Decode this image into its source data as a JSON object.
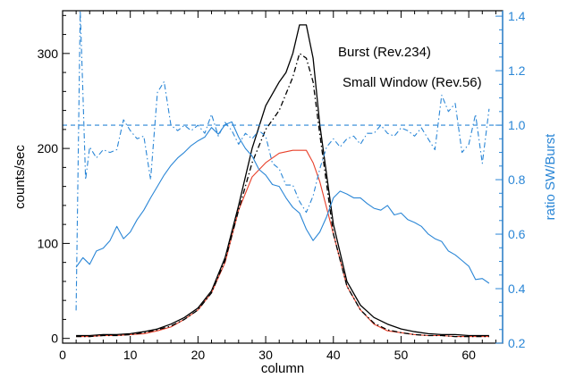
{
  "chart_data": {
    "type": "line",
    "xlabel": "column",
    "ylabel": "counts/sec",
    "y2label": "ratio SW/Burst",
    "xlim": [
      0,
      65
    ],
    "ylim": [
      -5,
      345
    ],
    "y2lim": [
      0.2,
      1.42
    ],
    "xticks": [
      "0",
      "10",
      "20",
      "30",
      "40",
      "50",
      "60"
    ],
    "yticks": [
      "0",
      "100",
      "200",
      "300"
    ],
    "y2ticks": [
      "0.2",
      "0.4",
      "0.6",
      "0.8",
      "1.0",
      "1.2",
      "1.4"
    ],
    "grid": false,
    "legend_position": "top-right",
    "series": [
      {
        "name": "Burst (Rev.234)",
        "axis": "left",
        "style": "solid",
        "color": "#000000",
        "x": [
          2,
          4,
          6,
          8,
          10,
          12,
          14,
          16,
          18,
          20,
          22,
          24,
          26,
          28,
          30,
          32,
          33,
          34,
          35,
          36,
          37,
          38,
          40,
          42,
          44,
          46,
          48,
          50,
          52,
          54,
          56,
          58,
          60,
          62,
          63
        ],
        "y": [
          3,
          3,
          4,
          4,
          5,
          7,
          10,
          15,
          22,
          32,
          50,
          85,
          140,
          200,
          245,
          270,
          280,
          300,
          330,
          330,
          295,
          225,
          120,
          60,
          35,
          22,
          15,
          10,
          7,
          5,
          4,
          4,
          3,
          3,
          3
        ]
      },
      {
        "name": "Small Window (Rev.56)",
        "axis": "left",
        "style": "solid",
        "color": "#e8402a",
        "x": [
          2,
          4,
          6,
          8,
          10,
          12,
          14,
          16,
          18,
          20,
          22,
          24,
          26,
          28,
          30,
          32,
          34,
          36,
          37,
          38,
          40,
          42,
          44,
          46,
          48,
          50,
          52,
          54,
          56,
          58,
          60,
          62,
          63
        ],
        "y": [
          2,
          2,
          3,
          3,
          4,
          5,
          8,
          12,
          20,
          30,
          48,
          80,
          135,
          170,
          185,
          195,
          198,
          198,
          185,
          165,
          110,
          55,
          30,
          15,
          8,
          6,
          4,
          3,
          3,
          2,
          2,
          2,
          2
        ]
      },
      {
        "name": "",
        "axis": "left",
        "style": "dash-dot",
        "color": "#000000",
        "x": [
          2,
          4,
          6,
          8,
          10,
          12,
          14,
          16,
          18,
          20,
          22,
          24,
          26,
          28,
          30,
          32,
          34,
          35,
          36,
          37,
          38,
          40,
          42,
          44,
          46,
          48,
          50,
          52,
          54,
          56,
          58,
          60,
          62,
          63
        ],
        "y": [
          2,
          2,
          3,
          3,
          4,
          6,
          9,
          13,
          20,
          30,
          48,
          82,
          135,
          185,
          220,
          240,
          275,
          300,
          295,
          270,
          215,
          110,
          55,
          30,
          16,
          9,
          6,
          4,
          3,
          3,
          2,
          2,
          2,
          2
        ]
      },
      {
        "name": "",
        "axis": "left",
        "style": "solid",
        "color": "#2a86d6",
        "x": [
          2,
          3,
          4,
          5,
          6,
          7,
          8,
          9,
          10,
          11,
          12,
          13,
          14,
          15,
          16,
          17,
          18,
          19,
          20,
          21,
          22,
          23,
          24,
          25,
          26,
          27,
          28,
          29,
          30,
          31,
          32,
          33,
          34,
          35,
          36,
          37,
          38,
          39,
          40,
          41,
          42,
          43,
          44,
          45,
          46,
          47,
          48,
          49,
          50,
          51,
          52,
          53,
          54,
          55,
          56,
          57,
          58,
          59,
          60,
          61,
          62,
          63
        ],
        "y": [
          75,
          85,
          78,
          92,
          95,
          103,
          118,
          105,
          112,
          125,
          135,
          148,
          160,
          172,
          182,
          190,
          196,
          203,
          208,
          212,
          222,
          215,
          225,
          228,
          212,
          200,
          192,
          178,
          172,
          162,
          160,
          148,
          138,
          132,
          115,
          103,
          112,
          128,
          148,
          155,
          152,
          148,
          148,
          142,
          137,
          135,
          140,
          130,
          132,
          125,
          122,
          118,
          110,
          105,
          102,
          92,
          88,
          82,
          76,
          62,
          63,
          58
        ]
      },
      {
        "name": "",
        "axis": "right",
        "style": "dash-dot",
        "color": "#2a86d6",
        "x": [
          2,
          2.6,
          3,
          3.4,
          4,
          5,
          6,
          7,
          8,
          9,
          10,
          11,
          12,
          13,
          14,
          15,
          16,
          17,
          18,
          19,
          20,
          21,
          22,
          23,
          24,
          25,
          26,
          27,
          28,
          29,
          30,
          31,
          32,
          33,
          34,
          35,
          36,
          37,
          38,
          39,
          40,
          41,
          42,
          43,
          44,
          45,
          46,
          47,
          48,
          49,
          50,
          51,
          52,
          53,
          54,
          55,
          56,
          57,
          58,
          59,
          60,
          61,
          62,
          63
        ],
        "y": [
          0.32,
          1.42,
          1.12,
          0.8,
          0.92,
          0.88,
          0.91,
          0.9,
          0.91,
          1.02,
          0.98,
          0.95,
          0.96,
          0.8,
          1.12,
          1.16,
          1.0,
          0.98,
          1.0,
          0.98,
          1.0,
          0.97,
          1.04,
          0.96,
          1.01,
          0.98,
          0.93,
          0.97,
          0.95,
          0.98,
          0.96,
          0.86,
          0.84,
          0.78,
          0.78,
          0.72,
          0.68,
          0.74,
          0.84,
          0.92,
          0.95,
          0.92,
          0.95,
          0.96,
          0.93,
          0.97,
          0.97,
          1.0,
          0.97,
          0.96,
          0.99,
          0.98,
          0.96,
          0.99,
          0.95,
          0.91,
          1.11,
          1.05,
          1.08,
          0.9,
          0.93,
          1.04,
          0.86,
          1.06
        ]
      },
      {
        "name": "",
        "axis": "right",
        "style": "dashed",
        "color": "#2a86d6",
        "x": [
          0,
          65
        ],
        "y": [
          1.0,
          1.0
        ]
      }
    ]
  }
}
